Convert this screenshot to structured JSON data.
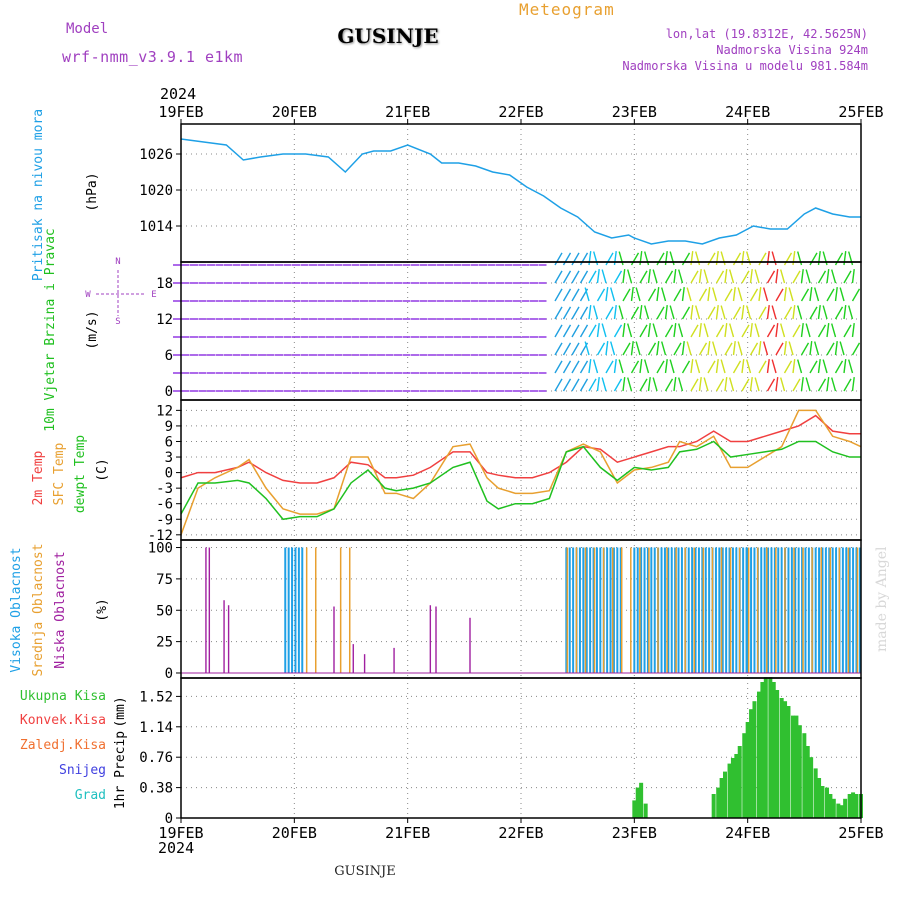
{
  "header": {
    "model_label": "Model",
    "model_name": "wrf-nmm_v3.9.1 e1km",
    "location": "GUSINJE",
    "meteogram_label": "Meteogram",
    "lonlat": "lon,lat (19.8312E, 42.5625N)",
    "altitude": "Nadmorska Visina 924m",
    "model_altitude": "Nadmorska Visina u modelu 981.584m",
    "footer_location": "GUSINJE",
    "credit": "made by Angel"
  },
  "colors": {
    "pressure": "#1ea0e6",
    "temp2m": "#f04040",
    "sfc_temp": "#e8a030",
    "dewpt": "#20c020",
    "high_cloud": "#1ea0e6",
    "mid_cloud": "#e8a030",
    "low_cloud": "#a020a0",
    "total_precip": "#30c030",
    "conv_precip": "#f04040",
    "frozen_precip": "#f07030",
    "snow": "#4040e0",
    "hail": "#20c0c0",
    "purple_text": "#a040c0",
    "orange_text": "#e8a030"
  },
  "time_axis": {
    "year_top": "2024",
    "year_bottom": "2024",
    "ticks": [
      "19FEB",
      "20FEB",
      "21FEB",
      "22FEB",
      "23FEB",
      "24FEB",
      "25FEB"
    ]
  },
  "chart_data": [
    {
      "type": "line",
      "panel": "pressure",
      "ylabel": "Pritisak na nivou mora",
      "unit": "(hPa)",
      "yticks": [
        1014,
        1020,
        1026
      ],
      "ylim": [
        1008,
        1031
      ],
      "x_days": [
        0.0,
        0.2,
        0.4,
        0.55,
        0.7,
        0.9,
        1.1,
        1.3,
        1.45,
        1.6,
        1.7,
        1.85,
        2.0,
        2.2,
        2.3,
        2.45,
        2.6,
        2.75,
        2.9,
        3.05,
        3.2,
        3.35,
        3.5,
        3.65,
        3.8,
        3.95,
        4.0,
        4.15,
        4.3,
        4.45,
        4.6,
        4.75,
        4.9,
        5.05,
        5.2,
        5.35,
        5.5,
        5.6,
        5.75,
        5.9,
        6.0
      ],
      "series": [
        {
          "name": "Pritisak na nivou mora",
          "values": [
            1028.5,
            1028,
            1027.5,
            1025,
            1025.5,
            1026,
            1026,
            1025.5,
            1023,
            1026,
            1026.5,
            1026.5,
            1027.5,
            1026,
            1024.5,
            1024.5,
            1024,
            1023,
            1022.5,
            1020.5,
            1019,
            1017,
            1015.5,
            1013,
            1012,
            1012.5,
            1012,
            1011,
            1011.5,
            1011.5,
            1011,
            1012,
            1012.5,
            1014,
            1013.5,
            1013.5,
            1016,
            1017,
            1016,
            1015.5,
            1015.5
          ]
        }
      ]
    },
    {
      "type": "vector",
      "panel": "wind",
      "ylabel": "10m Vjetar Brzina i Pravac",
      "unit": "(m/s)",
      "compass": {
        "n": "N",
        "s": "S",
        "w": "W",
        "e": "E"
      },
      "yticks": [
        0,
        6,
        12,
        18
      ],
      "ylim": [
        -1.5,
        21.5
      ],
      "x_days": [
        0.0,
        0.5,
        1.0,
        1.5,
        2.0,
        2.5,
        3.0,
        3.4,
        3.6,
        4.0,
        4.5,
        5.0,
        5.2,
        5.5,
        6.0
      ],
      "speed": [
        0.8,
        0.8,
        0.8,
        0.8,
        0.7,
        0.6,
        0.5,
        0.6,
        1.5,
        5.0,
        6.0,
        7.0,
        9.0,
        5.0,
        4.0
      ]
    },
    {
      "type": "line",
      "panel": "temperature",
      "ylabel": [
        "2m Temp",
        "SFC Temp",
        "dewpt Temp"
      ],
      "unit": "(C)",
      "yticks": [
        -12,
        -9,
        -6,
        -3,
        0,
        3,
        6,
        9,
        12
      ],
      "ylim": [
        -13,
        14
      ],
      "x_days": [
        0.0,
        0.15,
        0.3,
        0.5,
        0.6,
        0.75,
        0.9,
        1.05,
        1.2,
        1.35,
        1.5,
        1.65,
        1.8,
        1.9,
        2.05,
        2.2,
        2.4,
        2.55,
        2.7,
        2.8,
        2.95,
        3.1,
        3.25,
        3.4,
        3.55,
        3.7,
        3.85,
        4.0,
        4.15,
        4.3,
        4.4,
        4.55,
        4.7,
        4.85,
        5.0,
        5.15,
        5.3,
        5.45,
        5.6,
        5.75,
        5.9,
        6.0
      ],
      "series": [
        {
          "name": "2m Temp",
          "values": [
            -1,
            0,
            0,
            1,
            2,
            0,
            -1.5,
            -2,
            -2,
            -1,
            2,
            1.5,
            -1,
            -1,
            -0.5,
            1,
            4,
            4,
            0,
            -0.5,
            -1,
            -1,
            0,
            2,
            5,
            4.5,
            2,
            3,
            4,
            5,
            5,
            6,
            8,
            6,
            6,
            7,
            8,
            9,
            11,
            8,
            7.5,
            7.5
          ]
        },
        {
          "name": "SFC Temp",
          "values": [
            -12,
            -3,
            -1,
            1,
            2.5,
            -3,
            -7,
            -8,
            -8,
            -7,
            3,
            3,
            -4,
            -4,
            -5,
            -2,
            5,
            5.5,
            -1,
            -3,
            -4,
            -4,
            -3.5,
            4,
            5.5,
            4,
            -2,
            0.5,
            1,
            2,
            6,
            5,
            7,
            1,
            1,
            3,
            5,
            12,
            12,
            7,
            6,
            5
          ]
        },
        {
          "name": "dewpt Temp",
          "values": [
            -8,
            -2,
            -2,
            -1.5,
            -2,
            -5,
            -9,
            -8.5,
            -8.5,
            -7,
            -2,
            0.5,
            -3,
            -3.5,
            -3,
            -2,
            1,
            2,
            -5.5,
            -7,
            -6,
            -6,
            -5,
            4,
            5,
            1,
            -1.5,
            1,
            0.5,
            1,
            4,
            4.5,
            6,
            3,
            3.5,
            4,
            4.5,
            6,
            6,
            4,
            3,
            3
          ]
        }
      ]
    },
    {
      "type": "bar",
      "panel": "cloud",
      "ylabel": [
        "Visoka Oblacnost",
        "Srednja Oblacnost",
        "Niska Oblacnost"
      ],
      "unit": "(%)",
      "yticks": [
        0,
        25,
        50,
        75,
        100
      ],
      "ylim": [
        -4,
        106
      ],
      "series": [
        {
          "name": "Visoka Oblacnost",
          "ranges": [
            [
              0.92,
              1.1,
              100
            ],
            [
              3.4,
              3.9,
              100
            ],
            [
              4.0,
              5.0,
              100
            ],
            [
              5.0,
              6.0,
              100
            ]
          ]
        },
        {
          "name": "Srednja Oblacnost",
          "ranges": [
            [
              1.1,
              1.2,
              100
            ],
            [
              1.4,
              1.5,
              100
            ],
            [
              3.4,
              6.0,
              100
            ]
          ]
        },
        {
          "name": "Niska Oblacnost",
          "spikes": [
            [
              0.22,
              100
            ],
            [
              0.25,
              100
            ],
            [
              0.38,
              58
            ],
            [
              0.42,
              54
            ],
            [
              1.35,
              53
            ],
            [
              1.52,
              23
            ],
            [
              1.62,
              15
            ],
            [
              1.88,
              20
            ],
            [
              2.2,
              54
            ],
            [
              2.25,
              53
            ],
            [
              2.55,
              44
            ]
          ]
        }
      ]
    },
    {
      "type": "bar",
      "panel": "precipitation",
      "ylabel": "1hr Precip",
      "unit": "(mm)",
      "legend": [
        "Ukupna Kisa",
        "Konvek.Kisa",
        "Zaledj.Kisa",
        "Snijeg",
        "Grad"
      ],
      "yticks": [
        0,
        0.38,
        0.76,
        1.14,
        1.52
      ],
      "ylim": [
        0,
        1.75
      ],
      "x_days": [
        4.0,
        4.03,
        4.06,
        4.1,
        4.7,
        4.74,
        4.77,
        4.8,
        4.84,
        4.87,
        4.9,
        4.93,
        4.97,
        5.0,
        5.03,
        5.06,
        5.1,
        5.13,
        5.16,
        5.2,
        5.23,
        5.26,
        5.3,
        5.33,
        5.36,
        5.4,
        5.43,
        5.46,
        5.5,
        5.53,
        5.56,
        5.6,
        5.63,
        5.66,
        5.7,
        5.73,
        5.76,
        5.8,
        5.83,
        5.86,
        5.9,
        5.93,
        5.96,
        6.0
      ],
      "series": [
        {
          "name": "Ukupna Kisa",
          "values": [
            0.22,
            0.38,
            0.44,
            0.18,
            0.3,
            0.38,
            0.5,
            0.58,
            0.68,
            0.75,
            0.8,
            0.9,
            1.06,
            1.2,
            1.36,
            1.46,
            1.58,
            1.7,
            1.76,
            1.76,
            1.7,
            1.6,
            1.5,
            1.46,
            1.4,
            1.28,
            1.28,
            1.16,
            1.06,
            0.9,
            0.76,
            0.62,
            0.5,
            0.4,
            0.38,
            0.3,
            0.24,
            0.18,
            0.16,
            0.24,
            0.3,
            0.32,
            0.3,
            0.3
          ]
        }
      ]
    }
  ]
}
